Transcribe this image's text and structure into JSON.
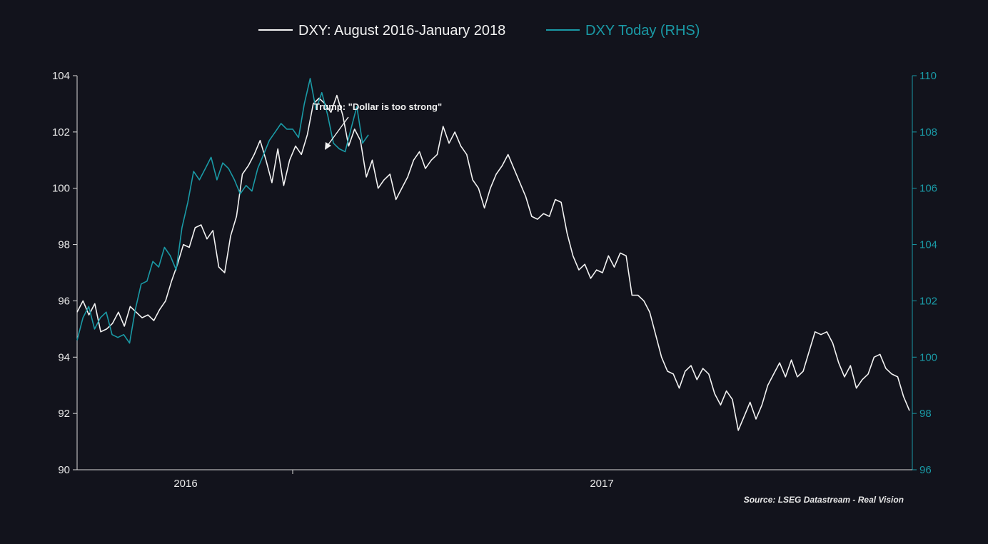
{
  "chart_data": {
    "type": "line",
    "title": "",
    "legend_position": "top-center",
    "colors": {
      "background": "#12131c",
      "axis": "#d9d9d9",
      "text": "#e8e8e8",
      "series1": "#f2f2f2",
      "series2": "#1a9aa6"
    },
    "x_axis": {
      "tick_labels": [
        "2016",
        "2017"
      ]
    },
    "y_left": {
      "ylim": [
        90,
        104
      ],
      "ticks": [
        90,
        92,
        94,
        96,
        98,
        100,
        102,
        104
      ],
      "label": ""
    },
    "y_right": {
      "ylim": [
        96,
        110
      ],
      "ticks": [
        96,
        98,
        100,
        102,
        104,
        106,
        108,
        110
      ],
      "label": ""
    },
    "series": [
      {
        "name": "DXY: August 2016-January 2018",
        "axis": "left",
        "time_span": [
          0,
          1
        ],
        "values": [
          95.6,
          96.0,
          95.5,
          95.9,
          94.9,
          95.0,
          95.2,
          95.6,
          95.1,
          95.8,
          95.6,
          95.4,
          95.5,
          95.3,
          95.7,
          96.0,
          96.7,
          97.3,
          98.0,
          97.9,
          98.6,
          98.7,
          98.2,
          98.5,
          97.2,
          97.0,
          98.3,
          99.0,
          100.5,
          100.8,
          101.2,
          101.7,
          101.0,
          100.2,
          101.4,
          100.1,
          101.0,
          101.5,
          101.2,
          101.9,
          103.0,
          103.2,
          103.0,
          102.7,
          103.3,
          102.6,
          101.5,
          102.1,
          101.7,
          100.4,
          101.0,
          100.0,
          100.3,
          100.5,
          99.6,
          100.0,
          100.4,
          101.0,
          101.3,
          100.7,
          101.0,
          101.2,
          102.2,
          101.6,
          102.0,
          101.5,
          101.2,
          100.3,
          100.0,
          99.3,
          100.0,
          100.5,
          100.8,
          101.2,
          100.7,
          100.2,
          99.7,
          99.0,
          98.9,
          99.1,
          99.0,
          99.6,
          99.5,
          98.4,
          97.6,
          97.1,
          97.3,
          96.8,
          97.1,
          97.0,
          97.6,
          97.2,
          97.7,
          97.6,
          96.2,
          96.2,
          96.0,
          95.6,
          94.8,
          94.0,
          93.5,
          93.4,
          92.9,
          93.5,
          93.7,
          93.2,
          93.6,
          93.4,
          92.7,
          92.3,
          92.8,
          92.5,
          91.4,
          91.9,
          92.4,
          91.8,
          92.3,
          93.0,
          93.4,
          93.8,
          93.3,
          93.9,
          93.3,
          93.5,
          94.2,
          94.9,
          94.8,
          94.9,
          94.5,
          93.8,
          93.3,
          93.7,
          92.9,
          93.2,
          93.4,
          94.0,
          94.1,
          93.6,
          93.4,
          93.3,
          92.6,
          92.1
        ],
        "color": "#f2f2f2"
      },
      {
        "name": "DXY Today (RHS)",
        "axis": "right",
        "time_span": [
          0,
          0.35
        ],
        "values": [
          100.6,
          101.4,
          101.8,
          101.0,
          101.4,
          101.6,
          100.8,
          100.7,
          100.8,
          100.5,
          101.7,
          102.6,
          102.7,
          103.4,
          103.2,
          103.9,
          103.6,
          103.1,
          104.6,
          105.5,
          106.6,
          106.3,
          106.7,
          107.1,
          106.3,
          106.9,
          106.7,
          106.3,
          105.8,
          106.1,
          105.9,
          106.7,
          107.2,
          107.7,
          108.0,
          108.3,
          108.1,
          108.1,
          107.8,
          109.0,
          109.9,
          108.8,
          109.4,
          108.6,
          107.6,
          107.4,
          107.3,
          108.1,
          108.9,
          107.6,
          107.9
        ],
        "color": "#1a9aa6"
      }
    ],
    "legend": [
      "DXY: August 2016-January 2018",
      "DXY Today (RHS)"
    ],
    "annotation": "Trump: \"Dollar is too strong\"",
    "source": "Source: LSEG Datastream - Real Vision"
  }
}
